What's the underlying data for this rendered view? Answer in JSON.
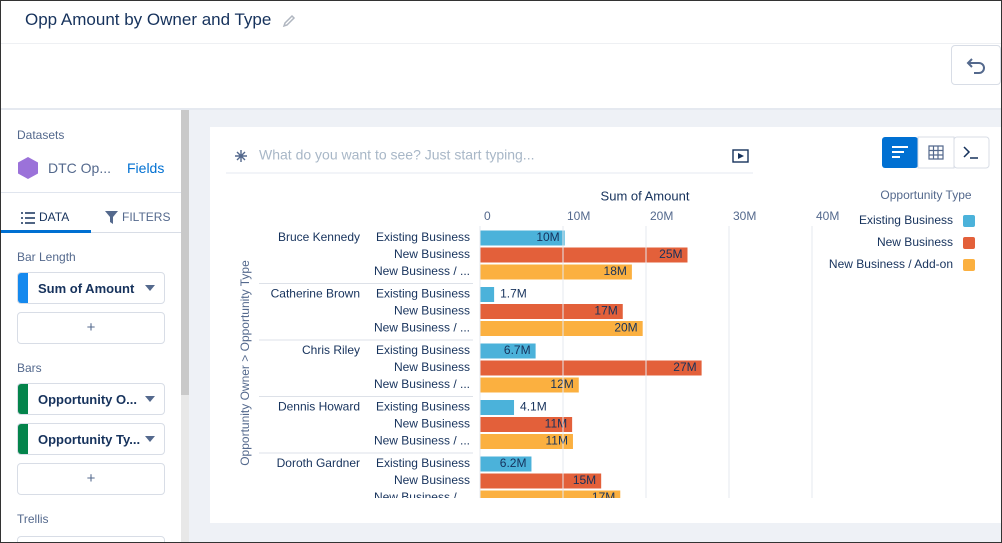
{
  "header": {
    "title": "Opp Amount by Owner and Type"
  },
  "sidebar": {
    "datasets_label": "Datasets",
    "dataset_name": "DTC Op...",
    "fields_link": "Fields",
    "tabs": [
      "DATA",
      "FILTERS"
    ],
    "sections": [
      {
        "title": "Bar Length",
        "fields": [
          "Sum of Amount"
        ],
        "add": "+"
      },
      {
        "title": "Bars",
        "fields": [
          "Opportunity O...",
          "Opportunity Ty..."
        ],
        "add": "+"
      },
      {
        "title": "Trellis"
      }
    ]
  },
  "search": {
    "placeholder": "What do you want to see? Just start typing..."
  },
  "chart_data": {
    "type": "bar",
    "orientation": "horizontal",
    "x_label": "Sum of Amount",
    "y_label": "Opportunity Owner > Opportunity Type",
    "categories": [
      "Bruce Kennedy",
      "Catherine Brown",
      "Chris Riley",
      "Dennis Howard",
      "Doroth Gardner"
    ],
    "row_labels": [
      "Existing Business",
      "New Business",
      "New Business / ..."
    ],
    "series": [
      {
        "name": "Existing Business",
        "color": "#4bb2da",
        "values": [
          10200000,
          1700000,
          6700000,
          4100000,
          6200000
        ],
        "value_labels": [
          "10M",
          "1.7M",
          "6.7M",
          "4.1M",
          "6.2M"
        ]
      },
      {
        "name": "New Business",
        "color": "#e3603a",
        "values": [
          25000000,
          17200000,
          26700000,
          11100000,
          14600000
        ],
        "value_labels": [
          "25M",
          "17M",
          "27M",
          "11M",
          "15M"
        ]
      },
      {
        "name": "New Business / Add-on",
        "color": "#fbb040",
        "values": [
          18300000,
          19600000,
          11900000,
          11200000,
          16900000
        ],
        "value_labels": [
          "18M",
          "20M",
          "12M",
          "11M",
          "17M"
        ]
      }
    ],
    "xlim": [
      0,
      40000000
    ],
    "xticks": [
      0,
      {
        "value": 10000000,
        "label": "10M"
      },
      {
        "value": 20000000,
        "label": "20M"
      },
      {
        "value": 30000000,
        "label": "30M"
      },
      {
        "value": 40000000,
        "label": "40M"
      }
    ],
    "grid": true,
    "legend_title": "Opportunity Type",
    "legend_position": "top-right"
  }
}
